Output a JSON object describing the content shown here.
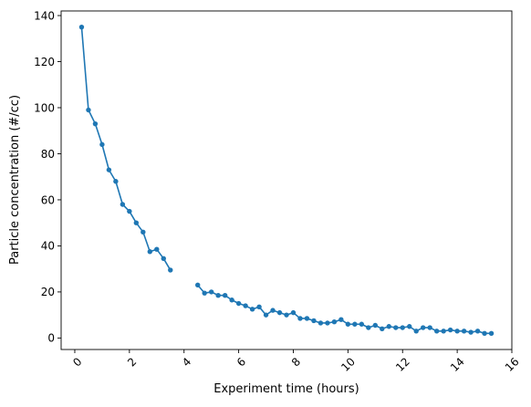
{
  "chart_data": {
    "type": "line",
    "title": "",
    "xlabel": "Experiment time (hours)",
    "ylabel": "Particle concentration (#/cc)",
    "xlim": [
      -0.5,
      16.0
    ],
    "ylim": [
      -5,
      142
    ],
    "xticks": [
      0,
      2,
      4,
      6,
      8,
      10,
      12,
      14,
      16
    ],
    "yticks": [
      0,
      20,
      40,
      60,
      80,
      100,
      120,
      140
    ],
    "grid": false,
    "legend": "none",
    "color": "#1f77b4",
    "marker": "circle",
    "series": [
      {
        "segments": [
          {
            "x": [
              0.25,
              0.5,
              0.75,
              1.0,
              1.25,
              1.5,
              1.75,
              2.0,
              2.25,
              2.5,
              2.75,
              3.0,
              3.25,
              3.5
            ],
            "y": [
              135,
              99,
              93,
              84,
              73,
              68,
              58,
              55,
              50,
              46,
              37.5,
              38.5,
              34.5,
              29.5
            ]
          },
          {
            "x": [
              4.5,
              4.75,
              5.0,
              5.25,
              5.5,
              5.75,
              6.0,
              6.25,
              6.5,
              6.75,
              7.0,
              7.25,
              7.5,
              7.75,
              8.0,
              8.25,
              8.5,
              8.75,
              9.0,
              9.25,
              9.5,
              9.75,
              10.0,
              10.25,
              10.5,
              10.75,
              11.0,
              11.25,
              11.5,
              11.75,
              12.0,
              12.25,
              12.5,
              12.75,
              13.0,
              13.25,
              13.5,
              13.75,
              14.0,
              14.25,
              14.5,
              14.75,
              15.0,
              15.25
            ],
            "y": [
              23,
              19.5,
              20,
              18.5,
              18.5,
              16.5,
              15,
              14,
              12.5,
              13.5,
              10,
              12,
              11,
              10,
              11,
              8.5,
              8.5,
              7.5,
              6.5,
              6.5,
              7,
              8,
              6,
              6,
              6,
              4.5,
              5.5,
              4,
              5,
              4.5,
              4.5,
              5,
              3,
              4.5,
              4.5,
              3,
              3,
              3.5,
              3,
              3,
              2.5,
              3,
              2,
              2
            ]
          }
        ]
      }
    ]
  }
}
